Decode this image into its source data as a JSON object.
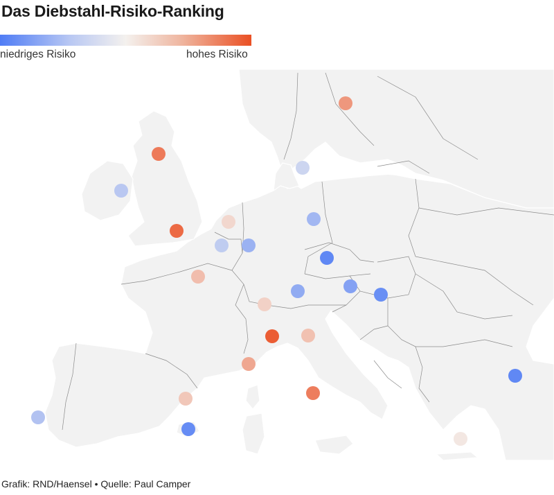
{
  "title": "Das Diebstahl-Risiko-Ranking",
  "legend": {
    "low_label": "niedriges Risiko",
    "high_label": "hohes Risiko",
    "low_color": "#4f7cf5",
    "mid_color": "#f4f1ee",
    "high_color": "#ea5024"
  },
  "footer": {
    "text": "Grafik: RND/Haensel • Quelle: Paul Camper"
  },
  "cities": [
    {
      "id": "stockholm",
      "risk": 0.78
    },
    {
      "id": "glasgow",
      "risk": 0.87
    },
    {
      "id": "copenhagen",
      "risk": 0.38
    },
    {
      "id": "dublin",
      "risk": 0.32
    },
    {
      "id": "london",
      "risk": 0.92
    },
    {
      "id": "amsterdam",
      "risk": 0.58
    },
    {
      "id": "berlin",
      "risk": 0.25
    },
    {
      "id": "brussels",
      "risk": 0.34
    },
    {
      "id": "luxembourg",
      "risk": 0.23
    },
    {
      "id": "prague",
      "risk": 0.05
    },
    {
      "id": "paris",
      "risk": 0.66
    },
    {
      "id": "vienna",
      "risk": 0.16
    },
    {
      "id": "munich",
      "risk": 0.2
    },
    {
      "id": "budapest",
      "risk": 0.08
    },
    {
      "id": "zurich",
      "risk": 0.6
    },
    {
      "id": "milan",
      "risk": 0.96
    },
    {
      "id": "bologna",
      "risk": 0.65
    },
    {
      "id": "nice",
      "risk": 0.73
    },
    {
      "id": "istanbul",
      "risk": 0.05
    },
    {
      "id": "barcelona",
      "risk": 0.63
    },
    {
      "id": "rome",
      "risk": 0.86
    },
    {
      "id": "lisbon",
      "risk": 0.3
    },
    {
      "id": "palma",
      "risk": 0.07
    },
    {
      "id": "athens",
      "risk": 0.53
    }
  ]
}
